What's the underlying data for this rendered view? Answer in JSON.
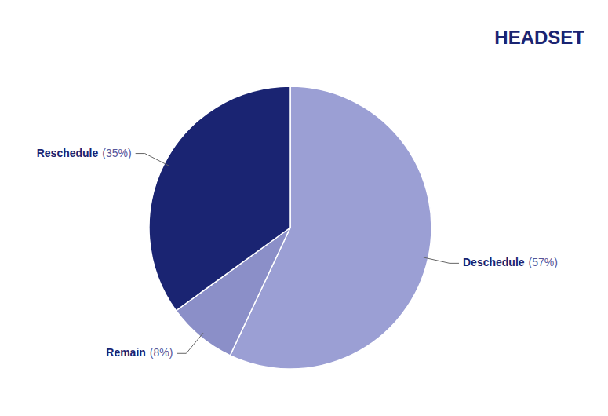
{
  "chart_data": {
    "type": "pie",
    "categories": [
      "Deschedule",
      "Remain",
      "Reschedule"
    ],
    "values": [
      57,
      8,
      35
    ],
    "value_labels": [
      "(57%)",
      "(8%)",
      "(35%)"
    ],
    "colors": [
      "#9b9fd4",
      "#8b8fc8",
      "#1a2472"
    ],
    "annotations": [
      "HEADSET"
    ]
  }
}
